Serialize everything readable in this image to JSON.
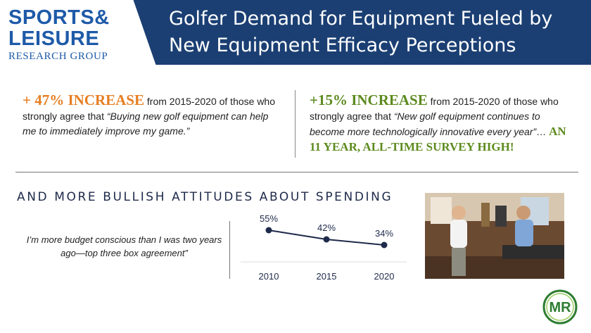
{
  "logo": {
    "line1": "SPORTS&",
    "line2": "LEISURE",
    "line3": "RESEARCH GROUP"
  },
  "header": {
    "title_line1": "Golfer Demand for Equipment Fueled by",
    "title_line2": "New Equipment Efficacy Perceptions",
    "band_color": "#1b3f73"
  },
  "stat_left": {
    "highlight": "+ 47% INCREASE",
    "text1": " from 2015-2020 of those who strongly agree that ",
    "quote": "“Buying new golf equipment can help me to immediately improve my game.”"
  },
  "stat_right": {
    "highlight": "+15% INCREASE",
    "text1": " from 2015-2020 of those who strongly agree that ",
    "quote": "“New golf equipment continues to become more technologically innovative every year”",
    "ellipsis": "… ",
    "tail": "AN 11 YEAR, ALL-TIME SURVEY HIGH!"
  },
  "section": {
    "title": "AND MORE BULLISH ATTITUDES ABOUT SPENDING"
  },
  "budget_statement": "I’m more budget conscious than I was two years ago—top three box agreement”",
  "chart_data": {
    "type": "line",
    "x": [
      "2010",
      "2015",
      "2020"
    ],
    "values": [
      55,
      42,
      34
    ],
    "data_labels": [
      "55%",
      "42%",
      "34%"
    ],
    "line_color": "#1e2a4a"
  },
  "photo": {
    "icon": "golf-shop-photo"
  },
  "brand": {
    "mark": "MR",
    "color": "#2e7d32"
  },
  "colors": {
    "logo_blue": "#1e5aa8",
    "orange": "#e67e22",
    "green": "#5c8a1e"
  }
}
